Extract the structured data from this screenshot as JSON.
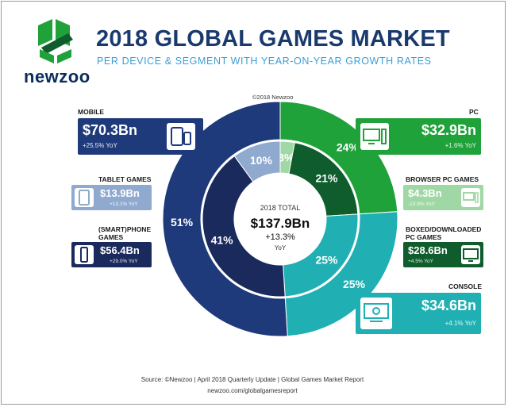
{
  "brand": "newzoo",
  "title": "2018 GLOBAL GAMES MARKET",
  "subtitle": "PER DEVICE & SEGMENT WITH YEAR-ON-YEAR GROWTH RATES",
  "copyright": "©2018 Newzoo",
  "center": {
    "line1": "2018 TOTAL",
    "value": "$137.9Bn",
    "growth": "+13.3%",
    "growth_label": "YoY"
  },
  "colors": {
    "mobile_dark": "#1e3a7b",
    "tablet": "#8fa9cf",
    "smartphone": "#1b2a5c",
    "pc_green": "#1fa23a",
    "browser": "#9fd8a4",
    "boxed": "#0f5c2c",
    "console": "#20b0b3",
    "title": "#1a3a6e",
    "subtitle": "#3a9fd6"
  },
  "segments": {
    "mobile": {
      "label": "MOBILE",
      "value": "$70.3Bn",
      "yoy": "+25.5% YoY"
    },
    "tablet": {
      "label": "TABLET GAMES",
      "value": "$13.9Bn",
      "yoy": "+13.1% YoY"
    },
    "smartphone": {
      "label1": "(SMART)PHONE",
      "label2": "GAMES",
      "value": "$56.4Bn",
      "yoy": "+29.0% YoY"
    },
    "pc": {
      "label": "PC",
      "value": "$32.9Bn",
      "yoy": "+1.6% YoY"
    },
    "browser": {
      "label": "BROWSER PC GAMES",
      "value": "$4.3Bn",
      "yoy": "-13.9% YoY"
    },
    "boxed": {
      "label1": "BOXED/DOWNLOADED",
      "label2": "PC GAMES",
      "value": "$28.6Bn",
      "yoy": "+4.5% YoY"
    },
    "console": {
      "label": "CONSOLE",
      "value": "$34.6Bn",
      "yoy": "+4.1% YoY"
    }
  },
  "chart_data": {
    "type": "pie",
    "title": "2018 GLOBAL GAMES MARKET",
    "outer_ring": [
      {
        "name": "MOBILE",
        "percent": 51,
        "value": 70.3,
        "color": "#1e3a7b"
      },
      {
        "name": "CONSOLE",
        "percent": 25,
        "value": 34.6,
        "color": "#20b0b3"
      },
      {
        "name": "PC",
        "percent": 24,
        "value": 32.9,
        "color": "#1fa23a"
      }
    ],
    "inner_ring": [
      {
        "name": "TABLET GAMES",
        "percent": 10,
        "value": 13.9,
        "color": "#8fa9cf"
      },
      {
        "name": "(SMART)PHONE GAMES",
        "percent": 41,
        "value": 56.4,
        "color": "#1b2a5c"
      },
      {
        "name": "CONSOLE",
        "percent": 25,
        "value": 34.6,
        "color": "#20b0b3"
      },
      {
        "name": "BOXED/DOWNLOADED PC GAMES",
        "percent": 21,
        "value": 28.6,
        "color": "#0f5c2c"
      },
      {
        "name": "BROWSER PC GAMES",
        "percent": 3,
        "value": 4.3,
        "color": "#9fd8a4"
      }
    ],
    "outer_labels": [
      "51%",
      "25%",
      "24%"
    ],
    "inner_labels": [
      "10%",
      "41%",
      "25%",
      "21%",
      "3%"
    ]
  },
  "footer": {
    "source": "Source: ©Newzoo  |  April 2018 Quarterly Update  |  Global Games Market Report",
    "url": "newzoo.com/globalgamesreport"
  }
}
